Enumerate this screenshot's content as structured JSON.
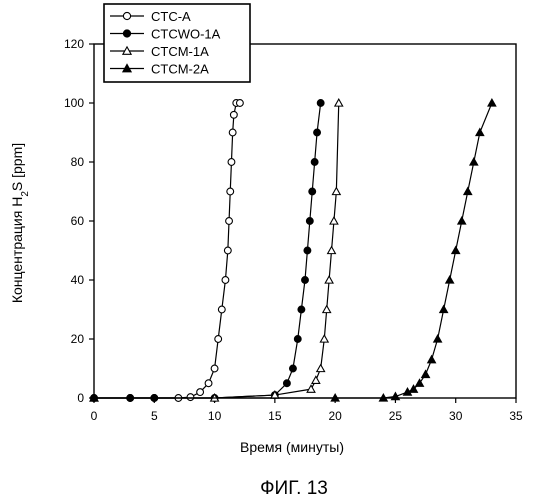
{
  "figure_caption": "ФИГ. 13",
  "chart_data": {
    "type": "line",
    "title": "",
    "xlabel": "Время (минуты)",
    "ylabel_main": "Концентрация H",
    "ylabel_sub": "2",
    "ylabel_tail": "S [ppm]",
    "xlim": [
      0,
      35
    ],
    "ylim": [
      0,
      120
    ],
    "xticks": [
      0,
      5,
      10,
      15,
      20,
      25,
      30,
      35
    ],
    "yticks": [
      0,
      20,
      40,
      60,
      80,
      100,
      120
    ],
    "grid": false,
    "legend_position": "top-left, above the plot",
    "series": [
      {
        "name": "CTC-A",
        "marker": "circle-open",
        "color": "#000000",
        "x": [
          0,
          3,
          5,
          7,
          8,
          8.8,
          9.5,
          10,
          10.3,
          10.6,
          10.9,
          11.1,
          11.2,
          11.3,
          11.4,
          11.5,
          11.6,
          11.8,
          12.1
        ],
        "y": [
          0,
          0,
          0,
          0,
          0.3,
          2,
          5,
          10,
          20,
          30,
          40,
          50,
          60,
          70,
          80,
          90,
          96,
          100,
          100
        ]
      },
      {
        "name": "CTCWO-1A",
        "marker": "circle-filled",
        "color": "#000000",
        "x": [
          0,
          3,
          5,
          10,
          15,
          16,
          16.5,
          16.9,
          17.2,
          17.5,
          17.7,
          17.9,
          18.1,
          18.3,
          18.5,
          18.8
        ],
        "y": [
          0,
          0,
          0,
          0,
          1,
          5,
          10,
          20,
          30,
          40,
          50,
          60,
          70,
          80,
          90,
          100
        ]
      },
      {
        "name": "CTCM-1A",
        "marker": "triangle-open",
        "color": "#000000",
        "x": [
          0,
          10,
          15,
          18,
          18.4,
          18.8,
          19.1,
          19.3,
          19.5,
          19.7,
          19.9,
          20.1,
          20.3
        ],
        "y": [
          0,
          0,
          1,
          3,
          6,
          10,
          20,
          30,
          40,
          50,
          60,
          70,
          100
        ]
      },
      {
        "name": "CTCM-2A",
        "marker": "triangle-filled",
        "color": "#000000",
        "x": [
          0,
          20,
          24,
          25,
          26,
          26.5,
          27,
          27.5,
          28,
          28.5,
          29,
          29.5,
          30,
          30.5,
          31,
          31.5,
          32,
          33
        ],
        "y": [
          0,
          0,
          0,
          0.5,
          2,
          3,
          5,
          8,
          13,
          20,
          30,
          40,
          50,
          60,
          70,
          80,
          90,
          100
        ]
      }
    ]
  }
}
